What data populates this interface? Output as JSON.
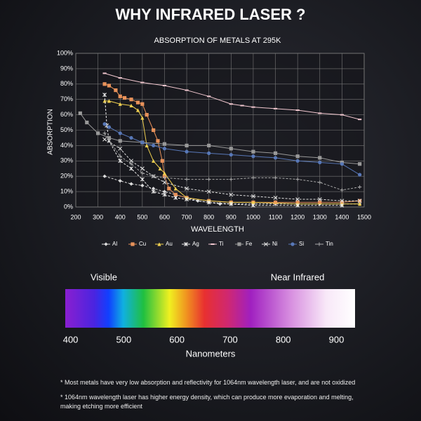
{
  "title": "WHY INFRARED LASER ?",
  "chart_data": {
    "type": "line",
    "title": "ABSORPTION OF METALS AT 295K",
    "x_label": "WAVELENGTH",
    "y_label": "ABSORPTION",
    "xlim": [
      200,
      1500
    ],
    "xticks": [
      200,
      300,
      400,
      500,
      600,
      700,
      800,
      900,
      1000,
      1100,
      1200,
      1300,
      1400,
      1500
    ],
    "ylim": [
      0,
      100
    ],
    "yticks": [
      {
        "value": 0,
        "label": "0%"
      },
      {
        "value": 10,
        "label": "10%"
      },
      {
        "value": 20,
        "label": "20%"
      },
      {
        "value": 30,
        "label": "30%"
      },
      {
        "value": 40,
        "label": "40%"
      },
      {
        "value": 50,
        "label": "50%"
      },
      {
        "value": 60,
        "label": "60%"
      },
      {
        "value": 70,
        "label": "70%"
      },
      {
        "value": 80,
        "label": "80%"
      },
      {
        "value": 90,
        "label": "90%"
      },
      {
        "value": 100,
        "label": "100%"
      }
    ],
    "grid": true,
    "series": [
      {
        "name": "Al",
        "color": "#dddddd",
        "marker": "diamond",
        "dashed": true,
        "x": [
          330,
          400,
          450,
          500,
          550,
          600,
          650,
          700,
          750,
          800,
          850,
          900,
          1000,
          1100,
          1200,
          1300,
          1400,
          1480
        ],
        "values": [
          20,
          17,
          15,
          14,
          12,
          10,
          8,
          6,
          4,
          3,
          2,
          2,
          2,
          2,
          2,
          2,
          2,
          2
        ]
      },
      {
        "name": "Cu",
        "color": "#e8925a",
        "marker": "square",
        "dashed": false,
        "x": [
          330,
          350,
          380,
          400,
          420,
          450,
          480,
          500,
          520,
          550,
          570,
          590,
          600,
          620,
          650,
          700,
          800,
          900,
          1000,
          1100,
          1200,
          1300,
          1400,
          1480
        ],
        "values": [
          80,
          79,
          76,
          72,
          71,
          70,
          68,
          67,
          60,
          50,
          43,
          30,
          20,
          12,
          8,
          6,
          4,
          3,
          3,
          3,
          3,
          3,
          3,
          4
        ]
      },
      {
        "name": "Au",
        "color": "#f0d050",
        "marker": "triangle",
        "dashed": false,
        "x": [
          330,
          350,
          400,
          450,
          480,
          500,
          520,
          550,
          580,
          600,
          650,
          700,
          800,
          900,
          1000,
          1200,
          1400,
          1480
        ],
        "values": [
          69,
          69,
          67,
          66,
          63,
          58,
          40,
          30,
          25,
          22,
          12,
          6,
          4,
          3,
          3,
          2,
          2,
          2
        ]
      },
      {
        "name": "Ag",
        "color": "#eeeeee",
        "marker": "asterisk",
        "dashed": true,
        "x": [
          330,
          340,
          350,
          400,
          450,
          500,
          550,
          600,
          650,
          700,
          800,
          900,
          1000,
          1200,
          1400
        ],
        "values": [
          73,
          53,
          43,
          30,
          25,
          18,
          10,
          8,
          6,
          5,
          3,
          2,
          1,
          1,
          1
        ]
      },
      {
        "name": "Ti",
        "color": "#f2c8d0",
        "marker": "dash",
        "dashed": false,
        "x": [
          330,
          400,
          500,
          600,
          700,
          800,
          900,
          950,
          1000,
          1100,
          1200,
          1300,
          1400,
          1480
        ],
        "values": [
          87,
          84,
          81,
          79,
          76,
          72,
          67,
          66,
          65,
          64,
          63,
          61,
          60,
          57
        ]
      },
      {
        "name": "Fe",
        "color": "#999999",
        "marker": "square",
        "dashed": false,
        "x": [
          220,
          250,
          300,
          350,
          400,
          500,
          600,
          700,
          800,
          900,
          1000,
          1100,
          1200,
          1300,
          1400,
          1480
        ],
        "values": [
          61,
          55,
          48,
          45,
          43,
          42,
          41,
          40,
          40,
          38,
          36,
          35,
          33,
          32,
          29,
          28
        ]
      },
      {
        "name": "Ni",
        "color": "#e0e0e0",
        "marker": "x",
        "dashed": true,
        "x": [
          330,
          400,
          450,
          500,
          550,
          600,
          700,
          800,
          900,
          1000,
          1100,
          1200,
          1300,
          1400,
          1480
        ],
        "values": [
          44,
          38,
          30,
          25,
          20,
          16,
          12,
          10,
          8,
          7,
          6,
          5,
          5,
          4,
          4
        ]
      },
      {
        "name": "Si",
        "color": "#5878b8",
        "marker": "circle",
        "dashed": false,
        "x": [
          330,
          350,
          400,
          450,
          500,
          550,
          600,
          700,
          800,
          900,
          1000,
          1100,
          1200,
          1300,
          1400,
          1480
        ],
        "values": [
          54,
          52,
          48,
          45,
          42,
          40,
          38,
          36,
          35,
          34,
          33,
          32,
          30,
          29,
          28,
          21
        ]
      },
      {
        "name": "Tin",
        "color": "#aaaaaa",
        "marker": "plus",
        "dashed": true,
        "x": [
          330,
          400,
          450,
          500,
          550,
          600,
          700,
          800,
          900,
          1000,
          1100,
          1200,
          1300,
          1400,
          1480
        ],
        "values": [
          48,
          33,
          28,
          22,
          20,
          19,
          18,
          18,
          18,
          19,
          19,
          18,
          16,
          11,
          13
        ]
      }
    ]
  },
  "spectrum": {
    "labels": [
      "Visible",
      "Near Infrared"
    ],
    "xlim": [
      390,
      935
    ],
    "xticks": [
      400,
      500,
      600,
      700,
      800,
      900
    ],
    "x_label": "Nanometers"
  },
  "notes": [
    "* Most metals have very low absorption and reflectivity for 1064nm wavelength laser, and are not oxidized",
    "* 1064nm wavelength laser has higher energy density, which can produce more evaporation and melting, making etching more efficient"
  ]
}
